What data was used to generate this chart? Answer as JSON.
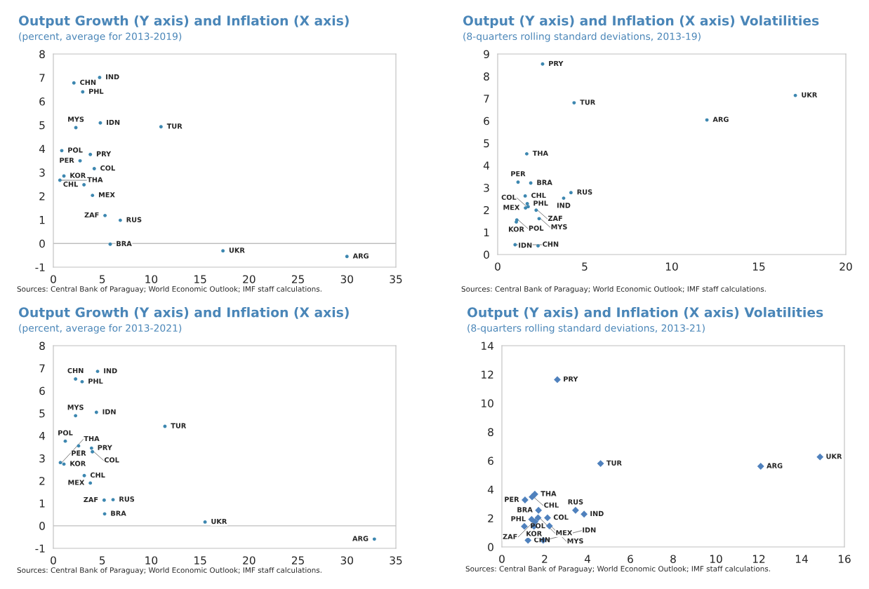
{
  "chart_data": [
    {
      "type": "scatter",
      "title": "Output Growth (Y axis) and Inflation (X axis)",
      "subtitle": "(percent, average for 2013-2019)",
      "marker": "circle",
      "xlim": [
        0,
        35
      ],
      "xticks": [
        0,
        5,
        10,
        15,
        20,
        25,
        30,
        35
      ],
      "ylim": [
        -1,
        8
      ],
      "yticks": [
        -1,
        0,
        1,
        2,
        3,
        4,
        5,
        6,
        7,
        8
      ],
      "grid": false,
      "legend": false,
      "ref_lines": [
        {
          "axis": "y",
          "value": 0,
          "color": "#bfbfbf"
        }
      ],
      "series": [
        {
          "color": "#3d87b0",
          "x": [
            4.73,
            2.1,
            3.0,
            4.8,
            2.3,
            11.0,
            0.86,
            3.78,
            2.73,
            4.18,
            1.08,
            0.67,
            3.13,
            4.0,
            5.28,
            6.84,
            5.81,
            17.33,
            30.0
          ],
          "values": [
            7.01,
            6.78,
            6.4,
            5.09,
            4.89,
            4.93,
            3.92,
            3.76,
            3.49,
            3.16,
            2.85,
            2.67,
            2.48,
            2.03,
            1.18,
            0.98,
            -0.03,
            -0.31,
            -0.55
          ]
        }
      ],
      "annotations": [
        {
          "text": "IND",
          "x": 4.73,
          "y": 7.01
        },
        {
          "text": "CHN",
          "x": 2.1,
          "y": 6.78
        },
        {
          "text": "PHL",
          "x": 3.0,
          "y": 6.4
        },
        {
          "text": "IDN",
          "x": 4.8,
          "y": 5.09
        },
        {
          "text": "MYS",
          "x": 2.3,
          "y": 4.89
        },
        {
          "text": "TUR",
          "x": 11.0,
          "y": 4.93
        },
        {
          "text": "POL",
          "x": 0.86,
          "y": 3.92
        },
        {
          "text": "PRY",
          "x": 3.78,
          "y": 3.76
        },
        {
          "text": "PER",
          "x": 2.73,
          "y": 3.49
        },
        {
          "text": "COL",
          "x": 4.18,
          "y": 3.16
        },
        {
          "text": "KOR",
          "x": 1.08,
          "y": 2.85
        },
        {
          "text": "THA",
          "x": 0.67,
          "y": 2.67
        },
        {
          "text": "CHL",
          "x": 3.13,
          "y": 2.48
        },
        {
          "text": "MEX",
          "x": 4.0,
          "y": 2.03
        },
        {
          "text": "ZAF",
          "x": 5.28,
          "y": 1.18
        },
        {
          "text": "RUS",
          "x": 6.84,
          "y": 0.98
        },
        {
          "text": "BRA",
          "x": 5.81,
          "y": -0.03
        },
        {
          "text": "UKR",
          "x": 17.33,
          "y": -0.31
        },
        {
          "text": "ARG",
          "x": 30.0,
          "y": -0.55
        },
        "Sources: Central Bank of Paraguay; World Economic Outlook; IMF staff calculations."
      ]
    },
    {
      "type": "scatter",
      "title": "Output (Y axis) and Inflation (X axis) Volatilities",
      "subtitle": "(8-quarters rolling standard deviations, 2013-19)",
      "marker": "circle",
      "xlim": [
        0,
        20
      ],
      "xticks": [
        0,
        5,
        10,
        15,
        20
      ],
      "ylim": [
        0,
        9
      ],
      "yticks": [
        0,
        1,
        2,
        3,
        4,
        5,
        6,
        7,
        8,
        9
      ],
      "grid": false,
      "legend": false,
      "series": [
        {
          "color": "#3d87b0",
          "x": [
            2.58,
            17.1,
            4.39,
            12.02,
            1.67,
            1.17,
            1.9,
            4.21,
            1.58,
            3.79,
            1.7,
            1.6,
            1.75,
            2.21,
            2.38,
            1.1,
            1.07,
            1.0,
            2.32
          ],
          "values": [
            8.55,
            7.14,
            6.81,
            6.04,
            4.52,
            3.25,
            3.21,
            2.78,
            2.63,
            2.53,
            2.28,
            2.09,
            2.15,
            1.99,
            1.61,
            1.55,
            1.46,
            0.44,
            0.39
          ]
        }
      ],
      "annotations": [
        {
          "text": "PRY",
          "x": 2.58,
          "y": 8.55
        },
        {
          "text": "UKR",
          "x": 17.1,
          "y": 7.14
        },
        {
          "text": "TUR",
          "x": 4.39,
          "y": 6.81
        },
        {
          "text": "ARG",
          "x": 12.02,
          "y": 6.04
        },
        {
          "text": "THA",
          "x": 1.67,
          "y": 4.52
        },
        {
          "text": "PER",
          "x": 1.17,
          "y": 3.25
        },
        {
          "text": "BRA",
          "x": 1.9,
          "y": 3.21
        },
        {
          "text": "RUS",
          "x": 4.21,
          "y": 2.78
        },
        {
          "text": "CHL",
          "x": 1.58,
          "y": 2.63
        },
        {
          "text": "IND",
          "x": 3.79,
          "y": 2.53
        },
        {
          "text": "PHL",
          "x": 1.7,
          "y": 2.28
        },
        {
          "text": "MEX",
          "x": 1.6,
          "y": 2.09
        },
        {
          "text": "COL",
          "x": 1.75,
          "y": 2.15
        },
        {
          "text": "ZAF",
          "x": 2.21,
          "y": 1.99
        },
        {
          "text": "MYS",
          "x": 2.38,
          "y": 1.61
        },
        {
          "text": "POL",
          "x": 1.1,
          "y": 1.55
        },
        {
          "text": "KOR",
          "x": 1.07,
          "y": 1.46
        },
        {
          "text": "CHN",
          "x": 1.0,
          "y": 0.44
        },
        {
          "text": "IDN",
          "x": 2.32,
          "y": 0.39
        },
        "Sources: Central Bank of Paraguay; World Economic Outlook; IMF staff calculations."
      ]
    },
    {
      "type": "scatter",
      "title": "Output Growth (Y axis) and Inflation (X axis)",
      "subtitle": "(percent, average for 2013-2021)",
      "marker": "circle",
      "xlim": [
        0,
        35
      ],
      "xticks": [
        0,
        5,
        10,
        15,
        20,
        25,
        30,
        35
      ],
      "ylim": [
        -1,
        8
      ],
      "yticks": [
        -1,
        0,
        1,
        2,
        3,
        4,
        5,
        6,
        7,
        8
      ],
      "grid": false,
      "legend": false,
      "ref_lines": [
        {
          "axis": "y",
          "value": 0,
          "color": "#bfbfbf"
        }
      ],
      "series": [
        {
          "color": "#3d87b0",
          "x": [
            4.52,
            2.27,
            2.94,
            4.4,
            2.27,
            11.4,
            1.22,
            2.58,
            3.9,
            3.99,
            0.72,
            1.08,
            3.16,
            3.78,
            5.19,
            6.1,
            5.24,
            15.5,
            32.8
          ],
          "values": [
            6.86,
            6.52,
            6.4,
            5.04,
            4.89,
            4.42,
            3.76,
            3.55,
            3.45,
            3.29,
            2.81,
            2.74,
            2.23,
            1.9,
            1.14,
            1.16,
            0.53,
            0.17,
            -0.59
          ]
        }
      ],
      "annotations": [
        {
          "text": "IND",
          "x": 4.52,
          "y": 6.86
        },
        {
          "text": "CHN",
          "x": 2.27,
          "y": 6.52
        },
        {
          "text": "PHL",
          "x": 2.94,
          "y": 6.4
        },
        {
          "text": "IDN",
          "x": 4.4,
          "y": 5.04
        },
        {
          "text": "MYS",
          "x": 2.27,
          "y": 4.89
        },
        {
          "text": "TUR",
          "x": 11.4,
          "y": 4.42
        },
        {
          "text": "POL",
          "x": 1.22,
          "y": 3.76
        },
        {
          "text": "PER",
          "x": 2.58,
          "y": 3.55
        },
        {
          "text": "PRY",
          "x": 3.9,
          "y": 3.45
        },
        {
          "text": "COL",
          "x": 3.99,
          "y": 3.29
        },
        {
          "text": "THA",
          "x": 0.72,
          "y": 2.81
        },
        {
          "text": "KOR",
          "x": 1.08,
          "y": 2.74
        },
        {
          "text": "CHL",
          "x": 3.16,
          "y": 2.23
        },
        {
          "text": "MEX",
          "x": 3.78,
          "y": 1.9
        },
        {
          "text": "ZAF",
          "x": 5.19,
          "y": 1.14
        },
        {
          "text": "RUS",
          "x": 6.1,
          "y": 1.16
        },
        {
          "text": "BRA",
          "x": 5.24,
          "y": 0.53
        },
        {
          "text": "UKR",
          "x": 15.5,
          "y": 0.17
        },
        {
          "text": "ARG",
          "x": 32.8,
          "y": -0.59
        },
        "Sources: Central Bank of Paraguay; World Economic Outlook; IMF staff calculations."
      ]
    },
    {
      "type": "scatter",
      "title": "Output (Y axis) and Inflation (X axis) Volatilities",
      "subtitle": "(8-quarters rolling standard deviations, 2013-21)",
      "marker": "diamond",
      "xlim": [
        0,
        16
      ],
      "xticks": [
        0,
        2,
        4,
        6,
        8,
        10,
        12,
        14,
        16
      ],
      "ylim": [
        0,
        14
      ],
      "yticks": [
        0,
        2,
        4,
        6,
        8,
        10,
        12,
        14
      ],
      "grid": false,
      "legend": false,
      "series": [
        {
          "color": "#4f81bd",
          "x": [
            2.59,
            4.61,
            12.09,
            14.86,
            1.54,
            1.41,
            1.08,
            1.71,
            3.44,
            3.84,
            2.13,
            1.69,
            1.39,
            1.55,
            1.05,
            1.5,
            2.22,
            1.22,
            1.93
          ],
          "values": [
            11.64,
            5.8,
            5.61,
            6.26,
            3.67,
            3.48,
            3.27,
            2.55,
            2.55,
            2.28,
            2.03,
            2.03,
            1.92,
            1.76,
            1.43,
            1.43,
            1.46,
            0.46,
            0.46
          ]
        }
      ],
      "annotations": [
        {
          "text": "PRY",
          "x": 2.59,
          "y": 11.64
        },
        {
          "text": "TUR",
          "x": 4.61,
          "y": 5.8
        },
        {
          "text": "ARG",
          "x": 12.09,
          "y": 5.61
        },
        {
          "text": "UKR",
          "x": 14.86,
          "y": 6.26
        },
        {
          "text": "THA",
          "x": 1.54,
          "y": 3.67
        },
        {
          "text": "CHL",
          "x": 1.41,
          "y": 3.48
        },
        {
          "text": "PER",
          "x": 1.08,
          "y": 3.27
        },
        {
          "text": "BRA",
          "x": 1.71,
          "y": 2.55
        },
        {
          "text": "RUS",
          "x": 3.44,
          "y": 2.55
        },
        {
          "text": "IND",
          "x": 3.84,
          "y": 2.28
        },
        {
          "text": "COL",
          "x": 2.13,
          "y": 2.03
        },
        {
          "text": "MEX",
          "x": 1.69,
          "y": 2.03
        },
        {
          "text": "PHL",
          "x": 1.39,
          "y": 1.92
        },
        {
          "text": "ZAF",
          "x": 1.55,
          "y": 1.76
        },
        {
          "text": "POL",
          "x": 1.05,
          "y": 1.43
        },
        {
          "text": "KOR",
          "x": 1.5,
          "y": 1.43
        },
        {
          "text": "MYS",
          "x": 2.22,
          "y": 1.46
        },
        {
          "text": "CHN",
          "x": 1.22,
          "y": 0.46
        },
        {
          "text": "IDN",
          "x": 1.93,
          "y": 0.46
        },
        "Sources: Central Bank of Paraguay; World Economic Outlook; IMF staff calculations."
      ]
    }
  ]
}
